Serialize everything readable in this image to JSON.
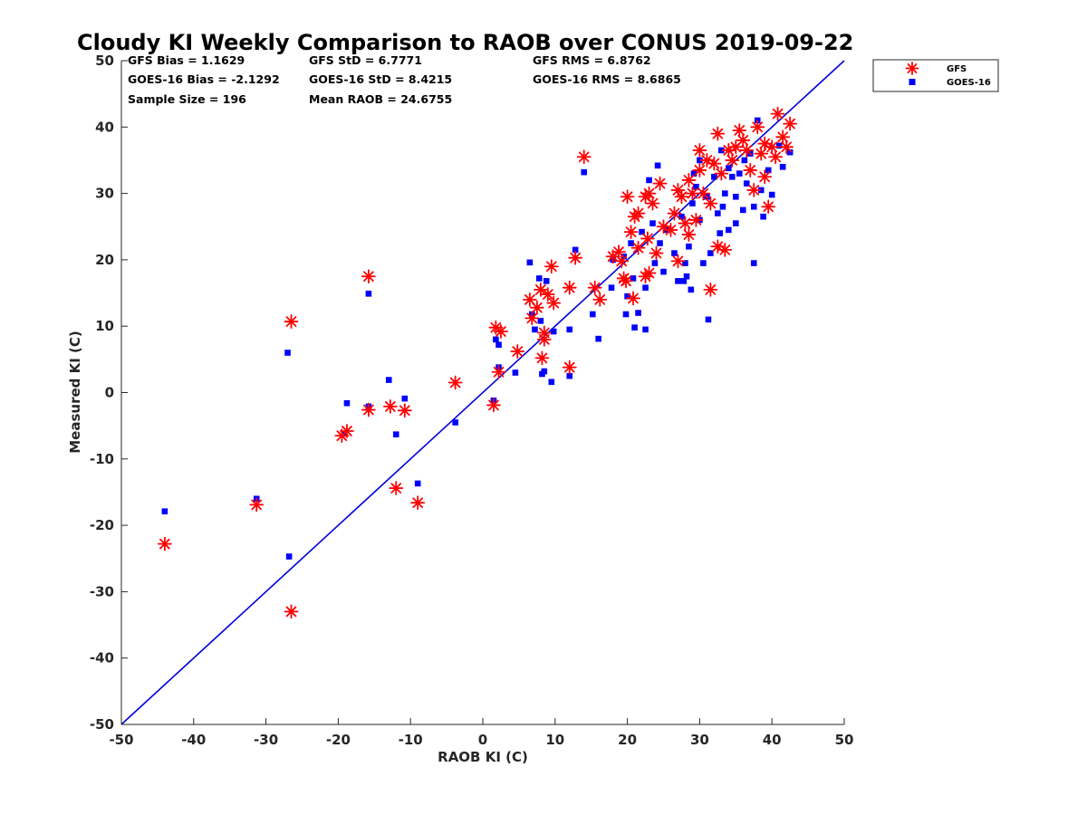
{
  "chart_data": {
    "type": "scatter",
    "title": "Cloudy KI Weekly Comparison to RAOB over CONUS 2019-09-22",
    "xlabel": "RAOB KI (C)",
    "ylabel": "Measured KI (C)",
    "xlim": [
      -50,
      50
    ],
    "ylim": [
      -50,
      50
    ],
    "xticks": [
      "-50",
      "-40",
      "-30",
      "-20",
      "-10",
      "0",
      "10",
      "20",
      "30",
      "40",
      "50"
    ],
    "yticks": [
      "-50",
      "-40",
      "-30",
      "-20",
      "-10",
      "0",
      "10",
      "20",
      "30",
      "40",
      "50"
    ],
    "grid": false,
    "legend_position": "top-right",
    "reference_line": {
      "type": "one-to-one",
      "color": "#0000dd"
    },
    "stats": {
      "gfs_bias": "GFS Bias = 1.1629",
      "gfs_std": "GFS StD = 6.7771",
      "gfs_rms": "GFS RMS = 6.8762",
      "goes_bias": "GOES-16 Bias = -2.1292",
      "goes_std": "GOES-16 StD = 8.4215",
      "goes_rms": "GOES-16 RMS = 8.6865",
      "sample_size": "Sample Size = 196",
      "mean_raob": "Mean RAOB = 24.6755"
    },
    "series": [
      {
        "name": "GFS",
        "color": "#ff0000",
        "marker": "asterisk",
        "points": [
          [
            -44.0,
            -22.8
          ],
          [
            -31.3,
            -16.9
          ],
          [
            -26.5,
            10.7
          ],
          [
            -26.5,
            -33.0
          ],
          [
            -19.5,
            -6.5
          ],
          [
            -18.8,
            -5.8
          ],
          [
            -15.8,
            17.5
          ],
          [
            -15.8,
            -2.6
          ],
          [
            -12.8,
            -2.1
          ],
          [
            -12.0,
            -14.4
          ],
          [
            -10.8,
            -2.7
          ],
          [
            -9.0,
            -16.6
          ],
          [
            -3.8,
            1.5
          ],
          [
            1.5,
            -1.9
          ],
          [
            1.8,
            9.8
          ],
          [
            2.5,
            9.2
          ],
          [
            2.2,
            3.1
          ],
          [
            4.8,
            6.2
          ],
          [
            6.5,
            14.0
          ],
          [
            6.8,
            11.2
          ],
          [
            7.5,
            12.8
          ],
          [
            8.0,
            15.5
          ],
          [
            8.5,
            9.0
          ],
          [
            8.5,
            8.0
          ],
          [
            8.2,
            5.2
          ],
          [
            9.0,
            14.8
          ],
          [
            9.5,
            19.0
          ],
          [
            9.8,
            13.5
          ],
          [
            12.0,
            15.8
          ],
          [
            12.0,
            3.8
          ],
          [
            12.8,
            20.3
          ],
          [
            14.0,
            35.5
          ],
          [
            15.5,
            15.8
          ],
          [
            16.2,
            14.0
          ],
          [
            18.0,
            20.5
          ],
          [
            18.8,
            21.2
          ],
          [
            19.2,
            19.8
          ],
          [
            19.5,
            17.2
          ],
          [
            19.8,
            16.8
          ],
          [
            20.0,
            29.5
          ],
          [
            20.5,
            24.2
          ],
          [
            20.8,
            14.2
          ],
          [
            21.0,
            26.5
          ],
          [
            21.5,
            27.0
          ],
          [
            21.5,
            21.8
          ],
          [
            22.5,
            29.5
          ],
          [
            22.8,
            23.2
          ],
          [
            23.0,
            30.0
          ],
          [
            23.5,
            28.5
          ],
          [
            22.5,
            17.5
          ],
          [
            23.0,
            18.0
          ],
          [
            24.0,
            21.0
          ],
          [
            24.5,
            31.5
          ],
          [
            25.0,
            25.0
          ],
          [
            26.0,
            24.5
          ],
          [
            26.5,
            27.0
          ],
          [
            27.0,
            30.5
          ],
          [
            27.0,
            19.8
          ],
          [
            27.5,
            29.5
          ],
          [
            28.0,
            25.5
          ],
          [
            28.5,
            32.0
          ],
          [
            28.5,
            23.8
          ],
          [
            29.0,
            30.0
          ],
          [
            29.5,
            26.0
          ],
          [
            30.0,
            36.5
          ],
          [
            30.0,
            33.5
          ],
          [
            30.5,
            30.0
          ],
          [
            31.0,
            35.0
          ],
          [
            31.5,
            28.5
          ],
          [
            31.5,
            15.5
          ],
          [
            32.0,
            34.5
          ],
          [
            32.5,
            39.0
          ],
          [
            32.5,
            22.0
          ],
          [
            33.0,
            33.0
          ],
          [
            33.5,
            21.5
          ],
          [
            34.0,
            36.5
          ],
          [
            34.5,
            35.0
          ],
          [
            35.0,
            37.0
          ],
          [
            35.5,
            39.5
          ],
          [
            36.0,
            38.0
          ],
          [
            36.5,
            36.5
          ],
          [
            37.0,
            33.5
          ],
          [
            37.5,
            30.5
          ],
          [
            38.0,
            40.0
          ],
          [
            38.5,
            36.0
          ],
          [
            39.0,
            37.5
          ],
          [
            39.0,
            32.5
          ],
          [
            39.5,
            28.0
          ],
          [
            40.0,
            37.0
          ],
          [
            40.5,
            35.5
          ],
          [
            40.8,
            42.0
          ],
          [
            41.5,
            38.5
          ],
          [
            42.0,
            37.0
          ],
          [
            42.5,
            40.5
          ]
        ]
      },
      {
        "name": "GOES-16",
        "color": "#0000ff",
        "marker": "square",
        "points": [
          [
            -44.0,
            -17.9
          ],
          [
            -31.3,
            -16.0
          ],
          [
            -27.0,
            6.0
          ],
          [
            -26.8,
            -24.7
          ],
          [
            -19.2,
            -6.2
          ],
          [
            -18.8,
            -1.6
          ],
          [
            -15.8,
            14.9
          ],
          [
            -15.8,
            -2.1
          ],
          [
            -13.0,
            1.9
          ],
          [
            -12.0,
            -6.3
          ],
          [
            -10.8,
            -0.9
          ],
          [
            -9.0,
            -13.7
          ],
          [
            -3.8,
            -4.5
          ],
          [
            1.5,
            -1.2
          ],
          [
            1.8,
            8.0
          ],
          [
            2.2,
            3.8
          ],
          [
            2.2,
            7.2
          ],
          [
            4.5,
            3.0
          ],
          [
            6.5,
            19.6
          ],
          [
            6.8,
            11.8
          ],
          [
            7.2,
            9.5
          ],
          [
            7.8,
            17.2
          ],
          [
            8.0,
            10.8
          ],
          [
            8.2,
            2.8
          ],
          [
            8.5,
            3.2
          ],
          [
            8.8,
            16.8
          ],
          [
            9.5,
            1.6
          ],
          [
            9.8,
            9.2
          ],
          [
            12.0,
            9.5
          ],
          [
            12.0,
            2.5
          ],
          [
            12.8,
            21.5
          ],
          [
            14.0,
            33.2
          ],
          [
            15.2,
            11.8
          ],
          [
            16.0,
            8.1
          ],
          [
            17.8,
            15.8
          ],
          [
            18.0,
            20.0
          ],
          [
            19.5,
            20.5
          ],
          [
            19.8,
            11.8
          ],
          [
            20.0,
            14.5
          ],
          [
            20.5,
            22.5
          ],
          [
            20.8,
            17.2
          ],
          [
            21.0,
            9.8
          ],
          [
            21.5,
            12.0
          ],
          [
            22.0,
            24.2
          ],
          [
            22.5,
            15.8
          ],
          [
            22.5,
            9.5
          ],
          [
            23.0,
            32.0
          ],
          [
            23.5,
            25.5
          ],
          [
            23.8,
            19.5
          ],
          [
            24.2,
            34.2
          ],
          [
            24.5,
            22.5
          ],
          [
            25.0,
            18.2
          ],
          [
            25.5,
            24.5
          ],
          [
            26.5,
            21.0
          ],
          [
            27.0,
            16.8
          ],
          [
            27.5,
            26.5
          ],
          [
            27.8,
            16.8
          ],
          [
            28.0,
            19.5
          ],
          [
            28.2,
            17.5
          ],
          [
            28.5,
            22.0
          ],
          [
            28.8,
            15.5
          ],
          [
            29.0,
            28.5
          ],
          [
            29.5,
            31.0
          ],
          [
            30.0,
            35.0
          ],
          [
            30.0,
            26.0
          ],
          [
            30.5,
            19.5
          ],
          [
            31.0,
            29.5
          ],
          [
            31.2,
            11.0
          ],
          [
            31.5,
            21.0
          ],
          [
            32.0,
            32.5
          ],
          [
            32.5,
            27.0
          ],
          [
            33.0,
            36.5
          ],
          [
            33.5,
            30.0
          ],
          [
            34.0,
            24.5
          ],
          [
            34.5,
            32.5
          ],
          [
            35.0,
            29.5
          ],
          [
            35.0,
            25.5
          ],
          [
            35.5,
            33.0
          ],
          [
            36.0,
            27.5
          ],
          [
            36.5,
            31.5
          ],
          [
            37.0,
            36.0
          ],
          [
            37.5,
            19.5
          ],
          [
            37.5,
            28.0
          ],
          [
            38.0,
            41.0
          ],
          [
            38.5,
            30.5
          ],
          [
            38.8,
            26.5
          ],
          [
            39.5,
            33.5
          ],
          [
            40.0,
            29.8
          ],
          [
            41.0,
            37.2
          ],
          [
            41.5,
            34.0
          ],
          [
            42.5,
            36.2
          ],
          [
            32.8,
            24.0
          ],
          [
            34.0,
            33.8
          ],
          [
            36.2,
            35.0
          ],
          [
            29.2,
            33.0
          ],
          [
            33.2,
            28.0
          ]
        ]
      }
    ]
  }
}
